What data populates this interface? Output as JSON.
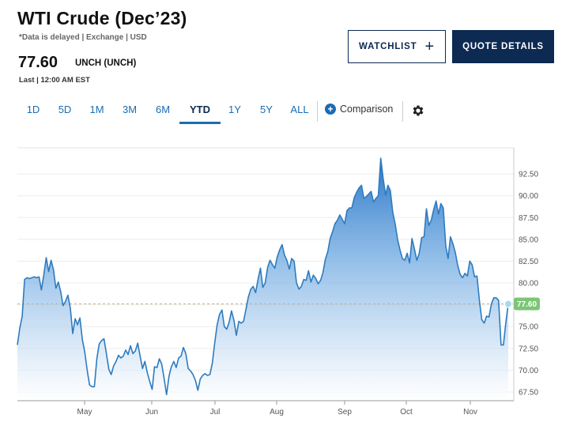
{
  "header": {
    "title": "WTI Crude (Dec’23)",
    "meta": "*Data is delayed | Exchange | USD",
    "price": "77.60",
    "change": "UNCH (UNCH)",
    "last": "Last | 12:00 AM EST"
  },
  "buttons": {
    "watchlist": "WATCHLIST",
    "watchlist_icon": "plus-icon",
    "quote_details": "QUOTE DETAILS"
  },
  "ranges": [
    "1D",
    "5D",
    "1M",
    "3M",
    "6M",
    "YTD",
    "1Y",
    "5Y",
    "ALL"
  ],
  "active_range": "YTD",
  "comparison": {
    "label": "Comparison",
    "icon": "plus-circle-icon"
  },
  "settings_icon": "gear-icon",
  "colors": {
    "line": "#2e7bbf",
    "area_top": "#1f6fc4",
    "area_bottom": "#ffffff",
    "price_badge": "#7cc576",
    "navy": "#0c2a52",
    "link": "#1a6cb3"
  },
  "chart_data": {
    "type": "area",
    "title": "WTI Crude (Dec’23)",
    "xlabel": "",
    "ylabel": "",
    "y_ticks": [
      "92.50",
      "90.00",
      "87.50",
      "85.00",
      "82.50",
      "80.00",
      "77.50",
      "75.00",
      "72.50",
      "70.00",
      "67.50"
    ],
    "x_ticks": [
      "May",
      "Jun",
      "Jul",
      "Aug",
      "Sep",
      "Oct",
      "Nov"
    ],
    "ylim": [
      66.5,
      95.5
    ],
    "current_value": 77.6,
    "current_label": "77.60",
    "reference_line": 77.6,
    "grid": "horizontal",
    "series": [
      {
        "name": "WTI Crude (Dec’23)",
        "start": "Mar 28",
        "end": "Nov 17",
        "values": [
          72.9,
          74.8,
          76.2,
          80.4,
          80.6,
          80.5,
          80.6,
          80.7,
          80.6,
          80.7,
          79.2,
          81.0,
          82.9,
          81.3,
          82.6,
          81.5,
          79.4,
          80.1,
          79.0,
          77.4,
          77.9,
          78.6,
          77.1,
          74.2,
          75.9,
          75.2,
          76.0,
          73.5,
          72.1,
          70.0,
          68.3,
          68.1,
          68.1,
          71.3,
          73.0,
          73.4,
          73.6,
          71.9,
          70.1,
          69.5,
          70.5,
          71.0,
          71.7,
          71.4,
          71.6,
          72.3,
          71.8,
          72.8,
          71.9,
          72.2,
          73.1,
          71.6,
          70.2,
          71.0,
          69.7,
          68.7,
          67.8,
          70.4,
          70.3,
          71.3,
          70.7,
          69.0,
          67.2,
          69.3,
          70.4,
          71.0,
          70.3,
          71.4,
          71.6,
          72.6,
          71.9,
          70.2,
          69.9,
          69.5,
          68.8,
          67.7,
          69.0,
          69.4,
          69.6,
          69.4,
          69.5,
          70.8,
          73.1,
          75.2,
          76.4,
          76.9,
          75.0,
          74.7,
          75.5,
          76.8,
          75.7,
          74.0,
          75.6,
          75.4,
          75.6,
          77.0,
          78.4,
          79.3,
          79.6,
          78.9,
          80.4,
          81.7,
          79.5,
          80.0,
          81.8,
          82.6,
          82.1,
          81.7,
          83.0,
          83.8,
          84.4,
          83.2,
          82.6,
          81.6,
          82.8,
          82.5,
          80.0,
          79.3,
          79.6,
          80.4,
          80.3,
          81.4,
          80.1,
          80.9,
          80.5,
          79.9,
          80.3,
          81.2,
          82.7,
          83.6,
          85.1,
          85.9,
          86.8,
          87.2,
          87.8,
          87.3,
          86.8,
          88.3,
          88.6,
          88.6,
          89.8,
          90.4,
          90.9,
          91.2,
          89.7,
          89.9,
          90.2,
          90.5,
          89.3,
          89.7,
          90.0,
          94.3,
          92.0,
          90.1,
          91.2,
          90.6,
          88.1,
          86.8,
          85.0,
          83.8,
          82.8,
          82.6,
          83.4,
          82.3,
          85.1,
          83.9,
          82.6,
          83.4,
          85.2,
          85.3,
          88.5,
          86.6,
          87.2,
          88.4,
          89.4,
          87.9,
          89.1,
          88.6,
          84.3,
          82.8,
          85.3,
          84.5,
          83.5,
          82.0,
          81.0,
          80.6,
          81.1,
          80.8,
          82.5,
          82.1,
          80.7,
          80.8,
          78.0,
          75.8,
          75.4,
          76.2,
          76.1,
          77.6,
          78.3,
          78.3,
          78.0,
          72.9,
          72.9,
          75.5,
          77.6
        ]
      }
    ]
  }
}
